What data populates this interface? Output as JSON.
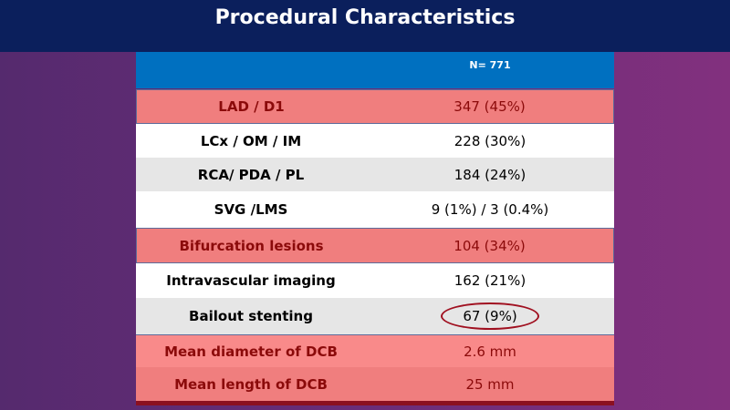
{
  "title": "Procedural Characteristics",
  "table": {
    "header": [
      "",
      "N= 771"
    ],
    "rows": [
      {
        "label": "LAD / D1",
        "value": "347 (45%)",
        "highlight": true
      },
      {
        "label": "LCx / OM / IM",
        "value": "228 (30%)",
        "highlight": false
      },
      {
        "label": "RCA/ PDA / PL",
        "value": "184 (24%)",
        "highlight": false
      },
      {
        "label": "SVG /LMS",
        "value": "9 (1%) / 3 (0.4%)",
        "highlight": false
      },
      {
        "label": "Bifurcation lesions",
        "value": "104 (34%)",
        "highlight": true
      },
      {
        "label": "Intravascular imaging",
        "value": "162 (21%)",
        "highlight": false
      },
      {
        "label": "Bailout stenting",
        "value": "67 (9%)",
        "highlight": false,
        "circled": true
      },
      {
        "label": "Mean diameter of DCB",
        "value": "2.6 mm",
        "highlight": true
      },
      {
        "label": "Mean length of DCB",
        "value": "25 mm",
        "highlight": true
      }
    ]
  },
  "colors": {
    "title_bg": "#0b1f5c",
    "header_bg": "#0070c0",
    "highlight_bg": "#f07e7e",
    "highlight_text": "#8b0a0a"
  }
}
